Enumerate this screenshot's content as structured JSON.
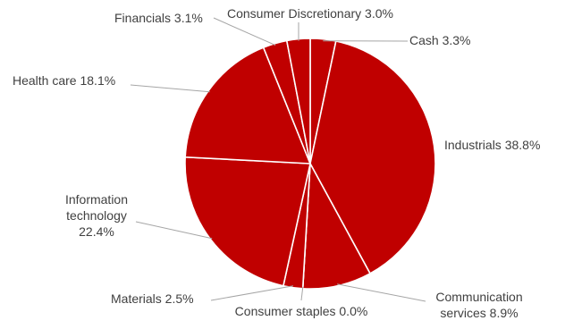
{
  "chart_data": {
    "type": "pie",
    "slices": [
      {
        "category": "Cash",
        "value": 3.3,
        "label_lines": [
          "Cash 3.3%"
        ]
      },
      {
        "category": "Industrials",
        "value": 38.8,
        "label_lines": [
          "Industrials 38.8%"
        ]
      },
      {
        "category": "Communication services",
        "value": 8.9,
        "label_lines": [
          "Communication",
          "services 8.9%"
        ]
      },
      {
        "category": "Consumer staples",
        "value": 0.0,
        "label_lines": [
          "Consumer staples 0.0%"
        ]
      },
      {
        "category": "Materials",
        "value": 2.5,
        "label_lines": [
          "Materials 2.5%"
        ]
      },
      {
        "category": "Information technology",
        "value": 22.4,
        "label_lines": [
          "Information",
          "technology",
          "22.4%"
        ]
      },
      {
        "category": "Health care",
        "value": 18.1,
        "label_lines": [
          "Health care 18.1%"
        ]
      },
      {
        "category": "Financials",
        "value": 3.1,
        "label_lines": [
          "Financials 3.1%"
        ]
      },
      {
        "category": "Consumer Discretionary",
        "value": 3.0,
        "label_lines": [
          "Consumer Discretionary 3.0%"
        ]
      }
    ],
    "start_angle_deg": 0,
    "direction": "clockwise",
    "slice_color": "#c00000",
    "slice_border_color": "#ffffff",
    "label_color": "#404040",
    "leader_line_color": "#a6a6a6",
    "legend": "none"
  }
}
